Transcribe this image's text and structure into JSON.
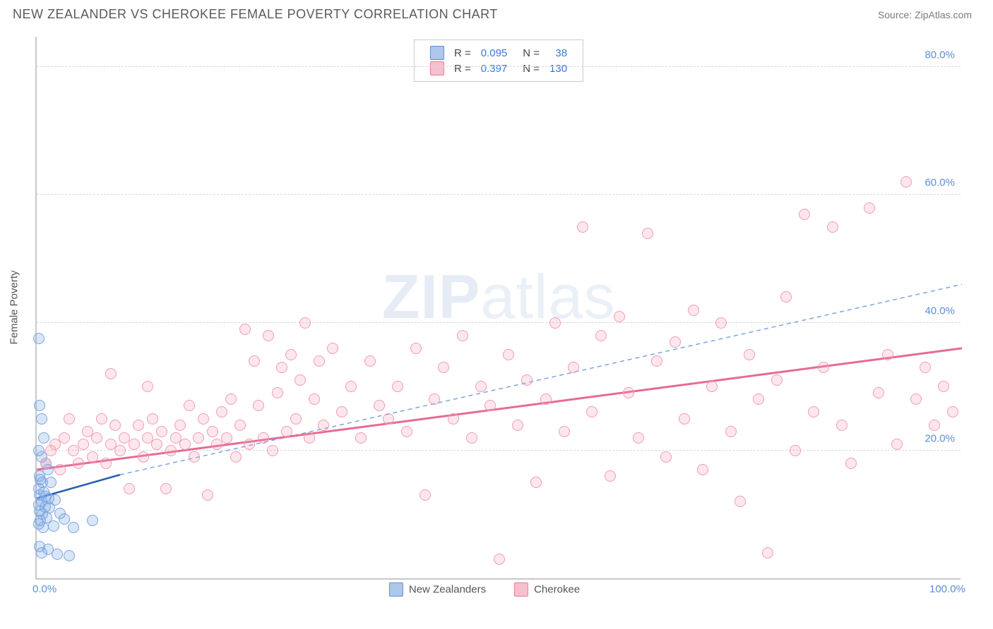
{
  "title": "NEW ZEALANDER VS CHEROKEE FEMALE POVERTY CORRELATION CHART",
  "source_label": "Source:",
  "source_name": "ZipAtlas.com",
  "ylabel": "Female Poverty",
  "watermark_bold": "ZIP",
  "watermark_rest": "atlas",
  "chart": {
    "type": "scatter",
    "xlim": [
      0,
      100
    ],
    "ylim": [
      0,
      85
    ],
    "xticks": [
      {
        "v": 0,
        "label": "0.0%"
      },
      {
        "v": 100,
        "label": "100.0%"
      }
    ],
    "yticks": [
      {
        "v": 20,
        "label": "20.0%"
      },
      {
        "v": 40,
        "label": "40.0%"
      },
      {
        "v": 60,
        "label": "60.0%"
      },
      {
        "v": 80,
        "label": "80.0%"
      }
    ],
    "grid_color": "#d8d8d8",
    "background": "#ffffff",
    "marker_radius": 8,
    "marker_stroke_width": 1.5,
    "series": [
      {
        "id": "nz",
        "label": "New Zealanders",
        "fill": "rgba(120,165,225,0.28)",
        "stroke": "#7aa5e0",
        "swatch_fill": "#aec7ea",
        "swatch_stroke": "#5e8fd0",
        "R": "0.095",
        "N": "38",
        "line": {
          "x1": 0,
          "y1": 12.5,
          "x2": 9,
          "y2": 16.2,
          "color": "#2a5eb5",
          "width": 2.5,
          "dash": "none"
        },
        "ext": {
          "x1": 9,
          "y1": 16.2,
          "x2": 100,
          "y2": 46,
          "color": "#7aa5e0",
          "width": 1.5,
          "dash": "6,5"
        },
        "points": [
          [
            0.2,
            37.5
          ],
          [
            0.3,
            27
          ],
          [
            0.5,
            25
          ],
          [
            0.8,
            22
          ],
          [
            0.2,
            20
          ],
          [
            0.5,
            19
          ],
          [
            1.0,
            18
          ],
          [
            1.2,
            17
          ],
          [
            0.3,
            16
          ],
          [
            0.4,
            15.5
          ],
          [
            0.6,
            15
          ],
          [
            1.5,
            15
          ],
          [
            0.2,
            14
          ],
          [
            0.8,
            13.5
          ],
          [
            0.3,
            13
          ],
          [
            1.0,
            12.8
          ],
          [
            1.3,
            12.5
          ],
          [
            2.0,
            12.2
          ],
          [
            0.5,
            12
          ],
          [
            0.2,
            11.5
          ],
          [
            0.9,
            11.2
          ],
          [
            1.4,
            11
          ],
          [
            0.3,
            10.5
          ],
          [
            2.5,
            10.2
          ],
          [
            0.6,
            10
          ],
          [
            1.1,
            9.5
          ],
          [
            3.0,
            9.3
          ],
          [
            0.4,
            9
          ],
          [
            0.2,
            8.5
          ],
          [
            1.8,
            8.2
          ],
          [
            0.7,
            8
          ],
          [
            4.0,
            8
          ],
          [
            0.3,
            5
          ],
          [
            1.2,
            4.5
          ],
          [
            0.5,
            4
          ],
          [
            2.2,
            3.8
          ],
          [
            3.5,
            3.5
          ],
          [
            6.0,
            9
          ]
        ]
      },
      {
        "id": "ch",
        "label": "Cherokee",
        "fill": "rgba(245,155,180,0.24)",
        "stroke": "#f19bb5",
        "swatch_fill": "#f7c0cf",
        "swatch_stroke": "#e57a9a",
        "R": "0.397",
        "N": "130",
        "line": {
          "x1": 0,
          "y1": 17,
          "x2": 100,
          "y2": 36,
          "color": "#e76a94",
          "width": 3,
          "dash": "none"
        },
        "points": [
          [
            1,
            18
          ],
          [
            1.5,
            20
          ],
          [
            2,
            21
          ],
          [
            2.5,
            17
          ],
          [
            3,
            22
          ],
          [
            3.5,
            25
          ],
          [
            4,
            20
          ],
          [
            4.5,
            18
          ],
          [
            5,
            21
          ],
          [
            5.5,
            23
          ],
          [
            6,
            19
          ],
          [
            6.5,
            22
          ],
          [
            7,
            25
          ],
          [
            7.5,
            18
          ],
          [
            8,
            21
          ],
          [
            8.5,
            24
          ],
          [
            9,
            20
          ],
          [
            9.5,
            22
          ],
          [
            10,
            14
          ],
          [
            10.5,
            21
          ],
          [
            11,
            24
          ],
          [
            11.5,
            19
          ],
          [
            12,
            22
          ],
          [
            12.5,
            25
          ],
          [
            13,
            21
          ],
          [
            13.5,
            23
          ],
          [
            14,
            14
          ],
          [
            14.5,
            20
          ],
          [
            15,
            22
          ],
          [
            15.5,
            24
          ],
          [
            16,
            21
          ],
          [
            16.5,
            27
          ],
          [
            17,
            19
          ],
          [
            17.5,
            22
          ],
          [
            18,
            25
          ],
          [
            18.5,
            13
          ],
          [
            19,
            23
          ],
          [
            19.5,
            21
          ],
          [
            20,
            26
          ],
          [
            20.5,
            22
          ],
          [
            21,
            28
          ],
          [
            21.5,
            19
          ],
          [
            22,
            24
          ],
          [
            22.5,
            39
          ],
          [
            23,
            21
          ],
          [
            23.5,
            34
          ],
          [
            24,
            27
          ],
          [
            24.5,
            22
          ],
          [
            25,
            38
          ],
          [
            25.5,
            20
          ],
          [
            26,
            29
          ],
          [
            26.5,
            33
          ],
          [
            27,
            23
          ],
          [
            27.5,
            35
          ],
          [
            28,
            25
          ],
          [
            28.5,
            31
          ],
          [
            29,
            40
          ],
          [
            29.5,
            22
          ],
          [
            30,
            28
          ],
          [
            30.5,
            34
          ],
          [
            31,
            24
          ],
          [
            32,
            36
          ],
          [
            33,
            26
          ],
          [
            34,
            30
          ],
          [
            35,
            22
          ],
          [
            36,
            34
          ],
          [
            37,
            27
          ],
          [
            38,
            25
          ],
          [
            39,
            30
          ],
          [
            40,
            23
          ],
          [
            41,
            36
          ],
          [
            42,
            13
          ],
          [
            43,
            28
          ],
          [
            44,
            33
          ],
          [
            45,
            25
          ],
          [
            46,
            38
          ],
          [
            47,
            22
          ],
          [
            48,
            30
          ],
          [
            49,
            27
          ],
          [
            50,
            3
          ],
          [
            51,
            35
          ],
          [
            52,
            24
          ],
          [
            53,
            31
          ],
          [
            54,
            15
          ],
          [
            55,
            28
          ],
          [
            56,
            40
          ],
          [
            57,
            23
          ],
          [
            58,
            33
          ],
          [
            59,
            55
          ],
          [
            60,
            26
          ],
          [
            61,
            38
          ],
          [
            62,
            16
          ],
          [
            63,
            41
          ],
          [
            64,
            29
          ],
          [
            65,
            22
          ],
          [
            66,
            54
          ],
          [
            67,
            34
          ],
          [
            68,
            19
          ],
          [
            69,
            37
          ],
          [
            70,
            25
          ],
          [
            71,
            42
          ],
          [
            72,
            17
          ],
          [
            73,
            30
          ],
          [
            74,
            40
          ],
          [
            75,
            23
          ],
          [
            76,
            12
          ],
          [
            77,
            35
          ],
          [
            78,
            28
          ],
          [
            79,
            4
          ],
          [
            80,
            31
          ],
          [
            81,
            44
          ],
          [
            82,
            20
          ],
          [
            83,
            57
          ],
          [
            84,
            26
          ],
          [
            85,
            33
          ],
          [
            86,
            55
          ],
          [
            87,
            24
          ],
          [
            88,
            18
          ],
          [
            90,
            58
          ],
          [
            91,
            29
          ],
          [
            92,
            35
          ],
          [
            93,
            21
          ],
          [
            94,
            62
          ],
          [
            95,
            28
          ],
          [
            96,
            33
          ],
          [
            97,
            24
          ],
          [
            98,
            30
          ],
          [
            99,
            26
          ],
          [
            8,
            32
          ],
          [
            12,
            30
          ]
        ]
      }
    ]
  },
  "legend_labels": {
    "nz": "New Zealanders",
    "ch": "Cherokee"
  }
}
